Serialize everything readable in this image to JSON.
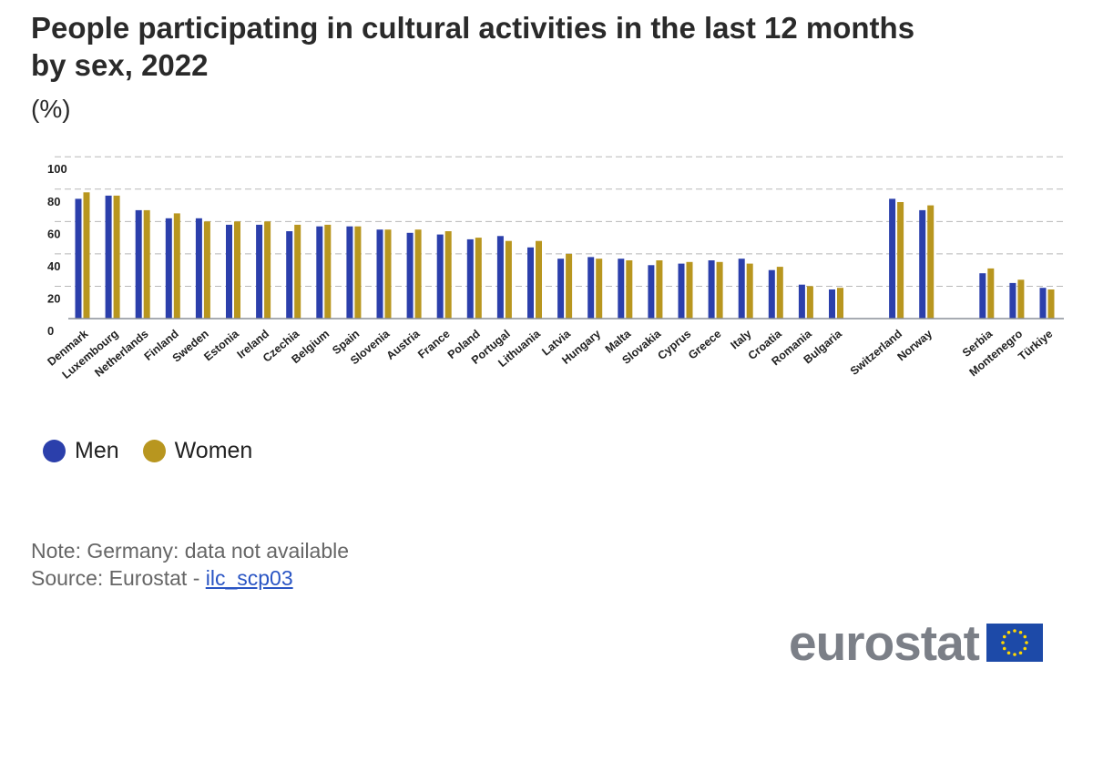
{
  "header": {
    "title": "People participating in cultural activities in the last 12 months by sex, 2022",
    "unit": "(%)"
  },
  "legend": [
    {
      "label": "Men",
      "color": "#2b3fab"
    },
    {
      "label": "Women",
      "color": "#b8961f"
    }
  ],
  "footer": {
    "note": "Note: Germany: data not available",
    "source_prefix": "Source: Eurostat - ",
    "source_link": "ilc_scp03"
  },
  "logo": {
    "text": "eurostat",
    "flag_icon": "eu-flag-icon",
    "flag_color": "#1d4aa8",
    "star_color": "#ffd700"
  },
  "chart_data": {
    "type": "bar",
    "categories": [
      "Denmark",
      "Luxembourg",
      "Netherlands",
      "Finland",
      "Sweden",
      "Estonia",
      "Ireland",
      "Czechia",
      "Belgium",
      "Spain",
      "Slovenia",
      "Austria",
      "France",
      "Poland",
      "Portugal",
      "Lithuania",
      "Latvia",
      "Hungary",
      "Malta",
      "Slovakia",
      "Cyprus",
      "Greece",
      "Italy",
      "Croatia",
      "Romania",
      "Bulgaria",
      "Switzerland",
      "Norway",
      "Serbia",
      "Montenegro",
      "Türkiye"
    ],
    "groups_gap_after": [
      "Bulgaria",
      "Norway"
    ],
    "series": [
      {
        "name": "Men",
        "color": "#2b3fab",
        "values": [
          74,
          76,
          67,
          62,
          62,
          58,
          58,
          54,
          57,
          57,
          55,
          53,
          52,
          49,
          51,
          44,
          37,
          38,
          37,
          33,
          34,
          36,
          37,
          30,
          21,
          18,
          74,
          67,
          28,
          22,
          19
        ]
      },
      {
        "name": "Women",
        "color": "#b8961f",
        "values": [
          78,
          76,
          67,
          65,
          60,
          60,
          60,
          58,
          58,
          57,
          55,
          55,
          54,
          50,
          48,
          48,
          40,
          37,
          36,
          36,
          35,
          35,
          34,
          32,
          20,
          19,
          72,
          70,
          31,
          24,
          18
        ]
      }
    ],
    "yticks": [
      0,
      20,
      40,
      60,
      80,
      100
    ],
    "ylim": [
      0,
      100
    ],
    "grid": true,
    "legend_position": "bottom-left"
  }
}
